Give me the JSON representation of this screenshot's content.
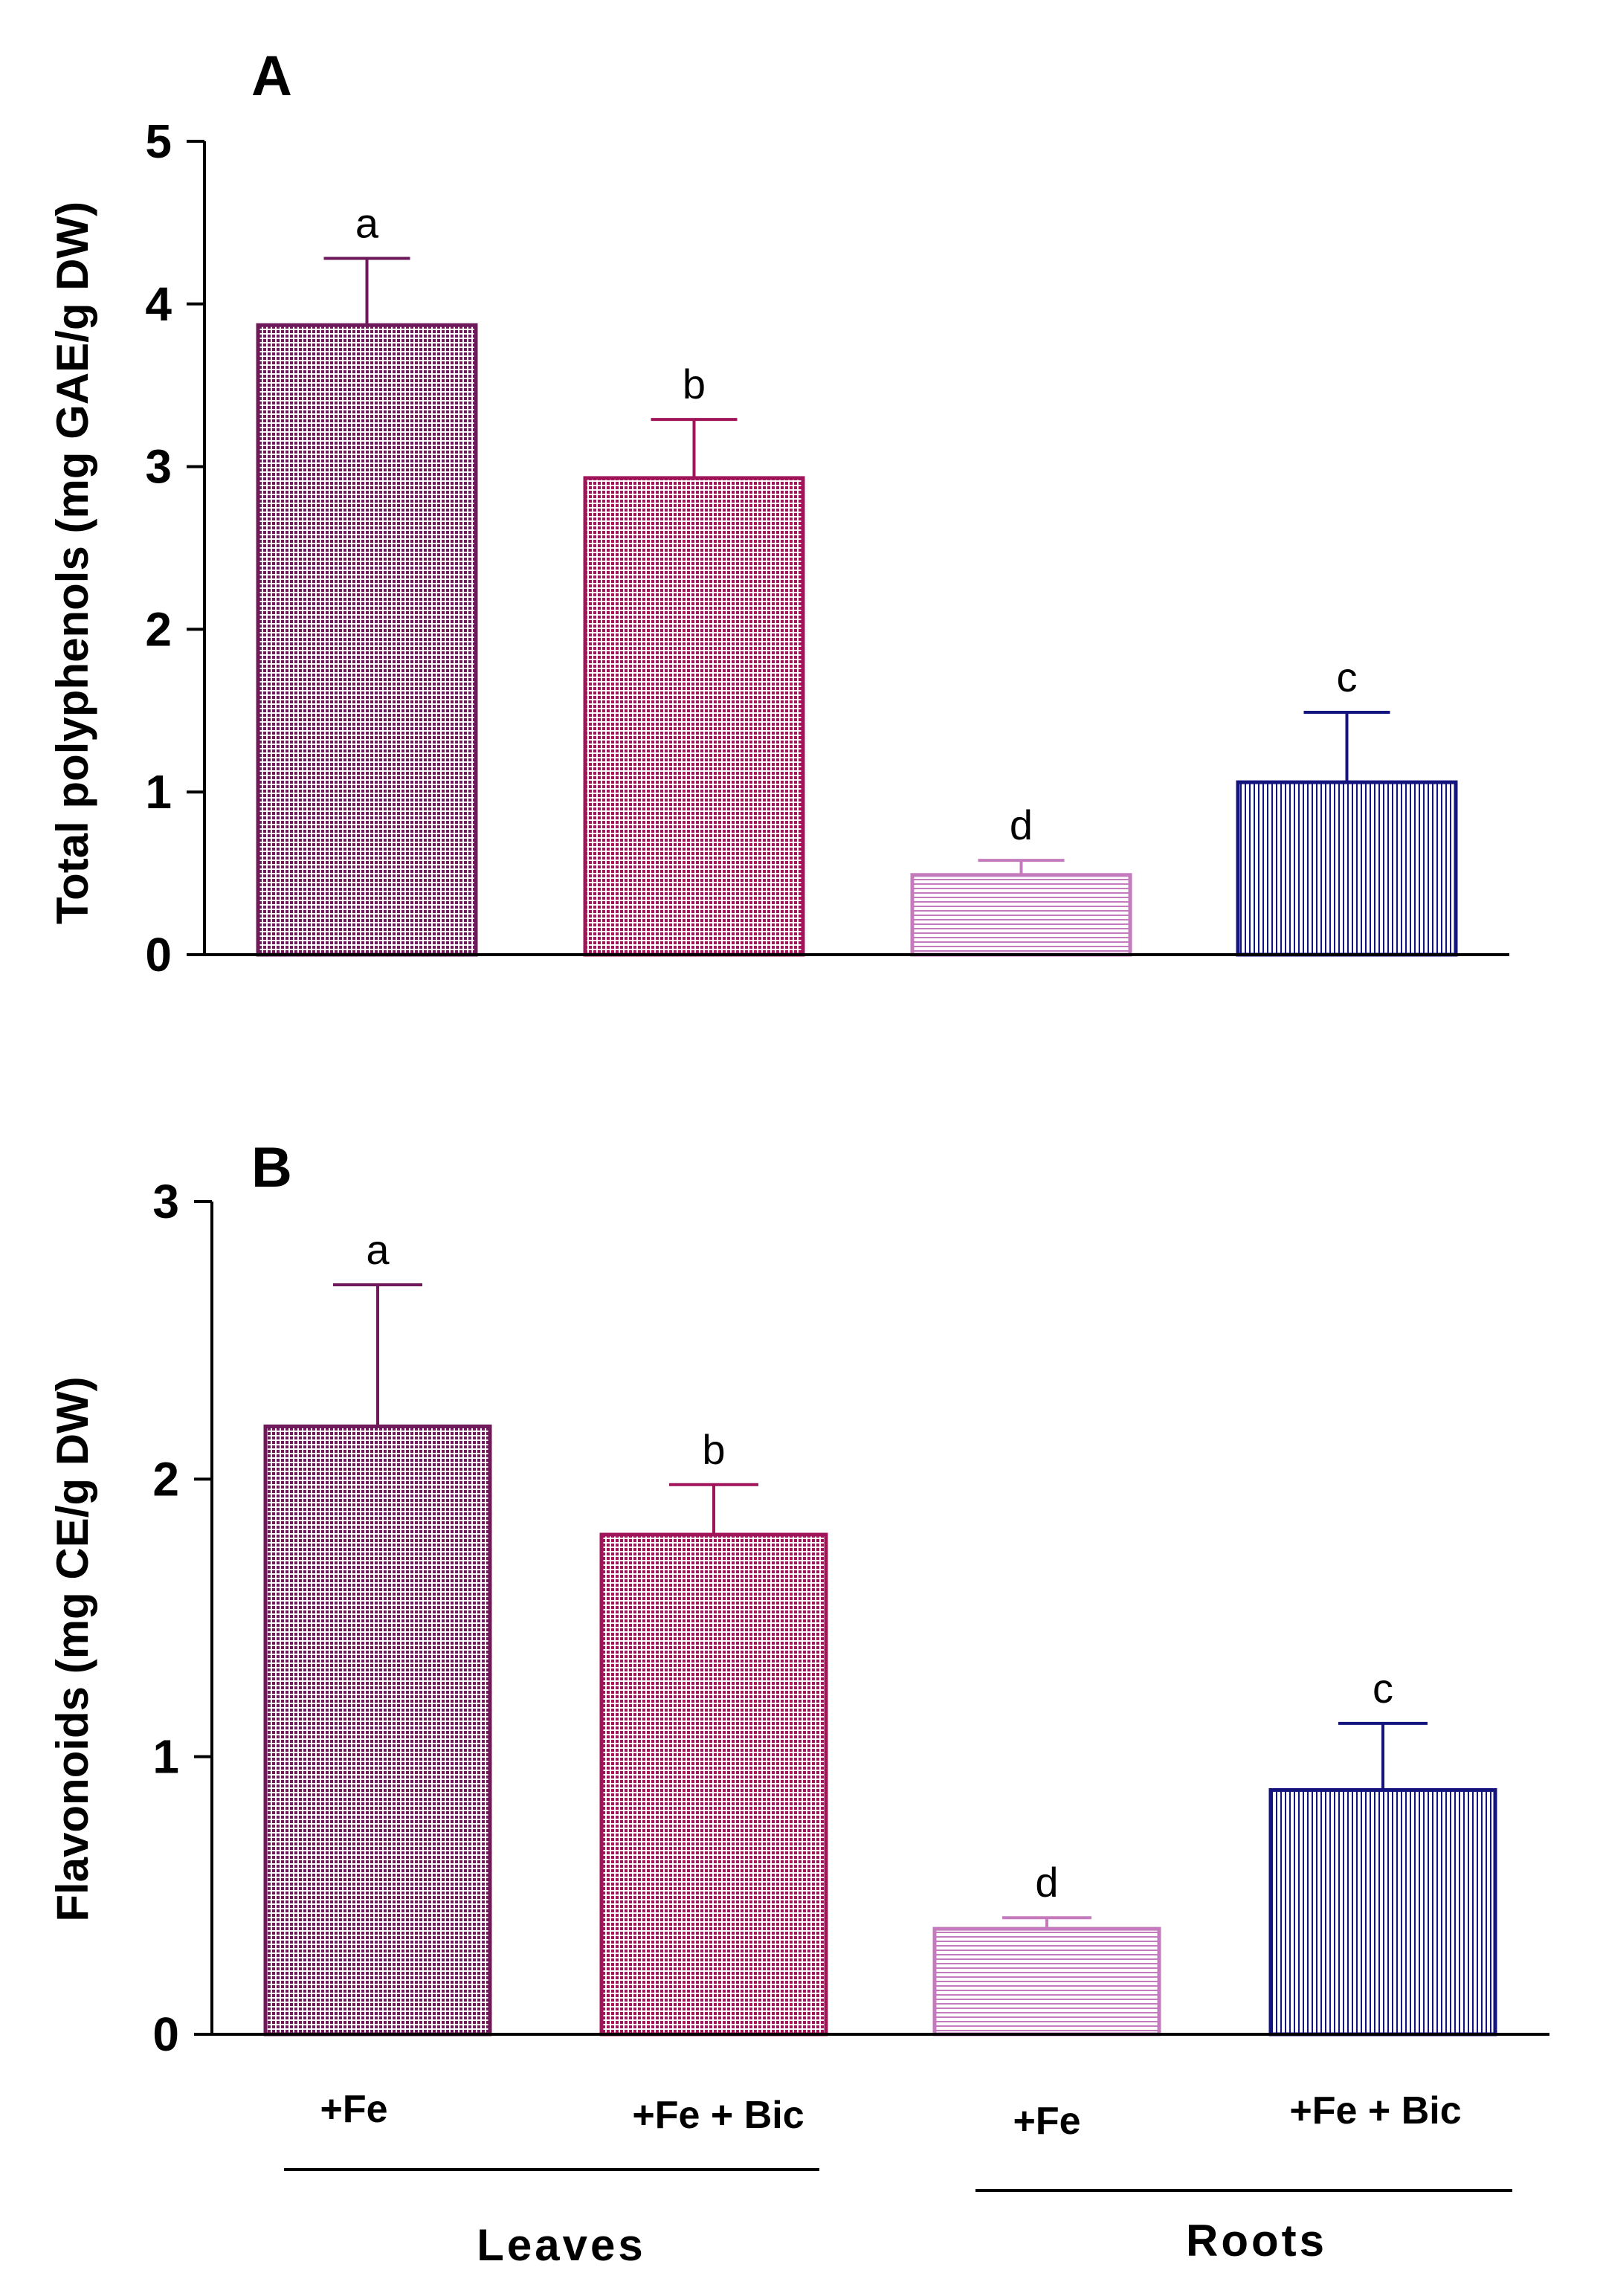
{
  "chart_data": [
    {
      "type": "bar",
      "panel_label": "A",
      "ylabel": "Total polyphenols (mg GAE/g DW)",
      "ylim": [
        0,
        5
      ],
      "yticks": [
        0,
        1,
        2,
        3,
        4,
        5
      ],
      "categories": [
        "+Fe",
        "+Fe + Bic",
        "+Fe",
        "+Fe + Bic"
      ],
      "values": [
        3.87,
        2.93,
        0.49,
        1.06
      ],
      "errors": [
        0.41,
        0.36,
        0.09,
        0.43
      ],
      "significance": [
        "a",
        "b",
        "d",
        "c"
      ],
      "colors": [
        "#6e1a5a",
        "#a0145a",
        "#c47bbd",
        "#14147f"
      ]
    },
    {
      "type": "bar",
      "panel_label": "B",
      "ylabel": "Flavonoids (mg CE/g DW)",
      "ylim": [
        0,
        3
      ],
      "yticks": [
        0,
        1,
        2,
        3
      ],
      "categories": [
        "+Fe",
        "+Fe + Bic",
        "+Fe",
        "+Fe + Bic"
      ],
      "values": [
        2.19,
        1.8,
        0.38,
        0.88
      ],
      "errors": [
        0.51,
        0.18,
        0.04,
        0.24
      ],
      "significance": [
        "a",
        "b",
        "d",
        "c"
      ],
      "colors": [
        "#6e1a5a",
        "#a0145a",
        "#c47bbd",
        "#14147f"
      ]
    }
  ],
  "x_axis": {
    "categories": [
      "+Fe",
      "+Fe + Bic",
      "+Fe",
      "+Fe + Bic"
    ],
    "groups": [
      {
        "label": "Leaves"
      },
      {
        "label": "Roots"
      }
    ]
  }
}
